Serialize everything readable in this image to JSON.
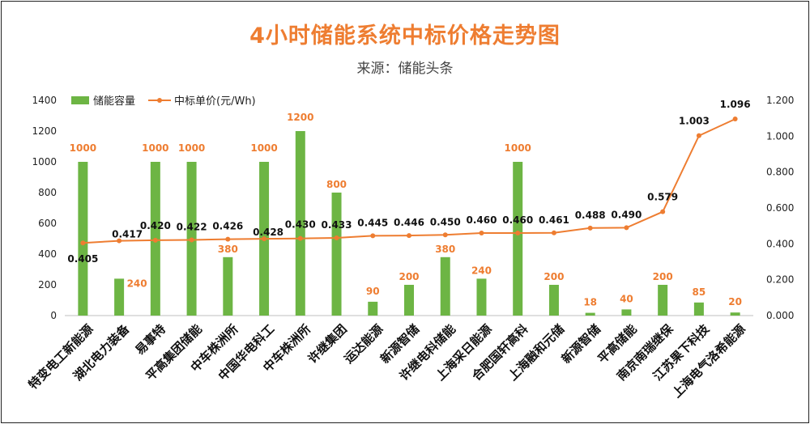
{
  "title": "4小时储能系统中标价格走势图",
  "subtitle": "来源：储能头条",
  "legend": {
    "bars": "储能容量",
    "line": "中标单价(元/Wh)"
  },
  "colors": {
    "bar": "#6DB544",
    "line": "#EE7D31",
    "title": "#EE7D31"
  },
  "chart_data": {
    "type": "bar",
    "title": "4小时储能系统中标价格走势图",
    "categories": [
      "特变电工新能源",
      "湖北电力装备",
      "易事特",
      "平高集团储能",
      "中车株洲所",
      "中国华电科工",
      "中车株洲所",
      "许继集团",
      "运达能源",
      "新源智储",
      "许继电科储能",
      "上海采日能源",
      "合肥国轩高科",
      "上海融和元储",
      "新源智储",
      "平高储能",
      "南京南瑞继保",
      "江苏果下科技",
      "上海电气洛希能源"
    ],
    "series": [
      {
        "name": "储能容量",
        "type": "bar",
        "axis": "left",
        "values": [
          1000,
          240,
          1000,
          1000,
          380,
          1000,
          1200,
          800,
          90,
          200,
          380,
          240,
          1000,
          200,
          18,
          40,
          200,
          85,
          20
        ]
      },
      {
        "name": "中标单价(元/Wh)",
        "type": "line",
        "axis": "right",
        "values": [
          0.405,
          0.417,
          0.42,
          0.422,
          0.426,
          0.428,
          0.43,
          0.433,
          0.445,
          0.446,
          0.45,
          0.46,
          0.46,
          0.461,
          0.488,
          0.49,
          0.579,
          1.003,
          1.096
        ]
      }
    ],
    "y_left": {
      "min": 0,
      "max": 1400,
      "ticks": [
        "0",
        "200",
        "400",
        "600",
        "800",
        "1000",
        "1200",
        "1400"
      ]
    },
    "y_right": {
      "min": 0,
      "max": 1.2,
      "ticks": [
        "0.000",
        "0.200",
        "0.400",
        "0.600",
        "0.800",
        "1.000",
        "1.200"
      ]
    },
    "bar_labels": [
      "1000",
      "240",
      "1000",
      "1000",
      "380",
      "1000",
      "1200",
      "800",
      "90",
      "200",
      "380",
      "240",
      "1000",
      "200",
      "18",
      "40",
      "200",
      "85",
      "20"
    ],
    "price_labels": [
      "0.405",
      "0.417",
      "0.420",
      "0.422",
      "0.426",
      "0.428",
      "0.430",
      "0.433",
      "0.445",
      "0.446",
      "0.450",
      "0.460",
      "0.460",
      "0.461",
      "0.488",
      "0.490",
      "0.579",
      "1.003",
      "1.096"
    ],
    "grid": false,
    "legend_position": "top-left"
  }
}
